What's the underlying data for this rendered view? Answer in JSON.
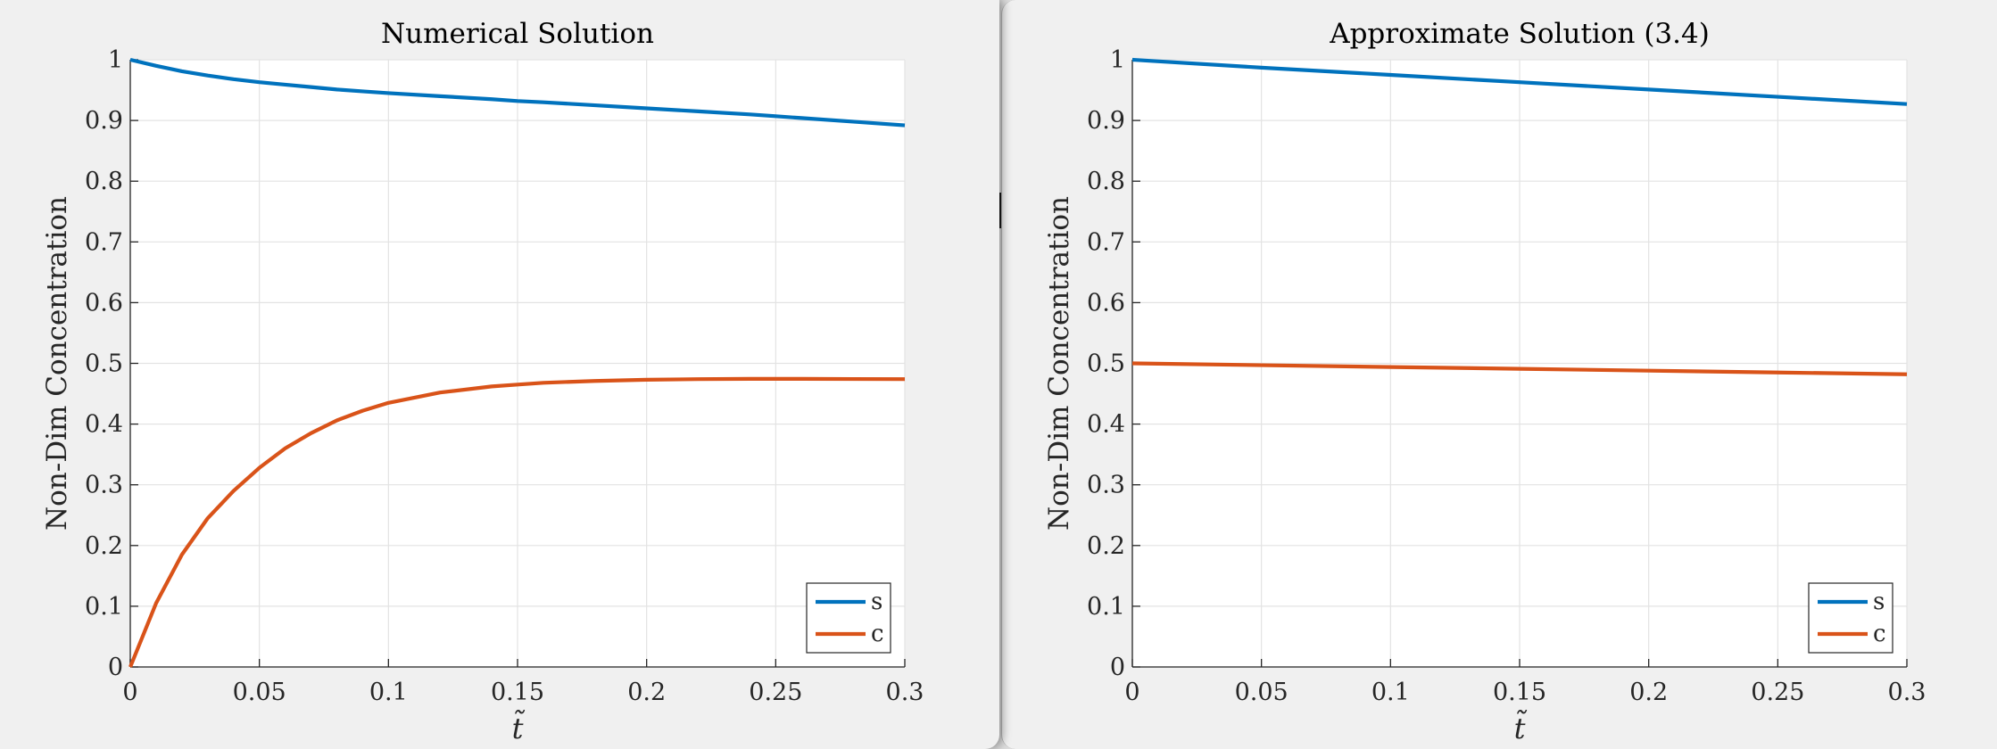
{
  "chart_data": [
    {
      "type": "line",
      "title": "Numerical Solution",
      "xlabel": "t̃",
      "ylabel": "Non-Dim Concentration",
      "xlim": [
        0,
        0.3
      ],
      "ylim": [
        0,
        1
      ],
      "xticks": [
        "0",
        "0.05",
        "0.1",
        "0.15",
        "0.2",
        "0.25",
        "0.3"
      ],
      "yticks": [
        "0",
        "0.1",
        "0.2",
        "0.3",
        "0.4",
        "0.5",
        "0.6",
        "0.7",
        "0.8",
        "0.9",
        "1"
      ],
      "grid": true,
      "legend_position": "bottom-right",
      "x": [
        0,
        0.01,
        0.02,
        0.03,
        0.04,
        0.05,
        0.06,
        0.07,
        0.08,
        0.09,
        0.1,
        0.12,
        0.14,
        0.15,
        0.16,
        0.18,
        0.2,
        0.22,
        0.24,
        0.25,
        0.26,
        0.28,
        0.3
      ],
      "series": [
        {
          "name": "s",
          "color": "#0072BD",
          "values": [
            1.0,
            0.99,
            0.981,
            0.974,
            0.968,
            0.963,
            0.959,
            0.955,
            0.951,
            0.948,
            0.945,
            0.94,
            0.935,
            0.932,
            0.93,
            0.925,
            0.92,
            0.915,
            0.91,
            0.907,
            0.904,
            0.898,
            0.892
          ]
        },
        {
          "name": "c",
          "color": "#D95319",
          "values": [
            0.0,
            0.105,
            0.185,
            0.245,
            0.29,
            0.328,
            0.36,
            0.385,
            0.406,
            0.422,
            0.435,
            0.452,
            0.462,
            0.465,
            0.468,
            0.471,
            0.473,
            0.474,
            0.4745,
            0.4745,
            0.4745,
            0.4742,
            0.474
          ]
        }
      ]
    },
    {
      "type": "line",
      "title": "Approximate Solution (3.4)",
      "xlabel": "t̃",
      "ylabel": "Non-Dim Concentration",
      "xlim": [
        0,
        0.3
      ],
      "ylim": [
        0,
        1
      ],
      "xticks": [
        "0",
        "0.05",
        "0.1",
        "0.15",
        "0.2",
        "0.25",
        "0.3"
      ],
      "yticks": [
        "0",
        "0.1",
        "0.2",
        "0.3",
        "0.4",
        "0.5",
        "0.6",
        "0.7",
        "0.8",
        "0.9",
        "1"
      ],
      "grid": true,
      "legend_position": "bottom-right",
      "x": [
        0,
        0.05,
        0.1,
        0.15,
        0.2,
        0.25,
        0.3
      ],
      "series": [
        {
          "name": "s",
          "color": "#0072BD",
          "values": [
            1.0,
            0.987,
            0.975,
            0.963,
            0.951,
            0.939,
            0.927
          ]
        },
        {
          "name": "c",
          "color": "#D95319",
          "values": [
            0.5,
            0.497,
            0.494,
            0.491,
            0.488,
            0.485,
            0.482
          ]
        }
      ]
    }
  ]
}
